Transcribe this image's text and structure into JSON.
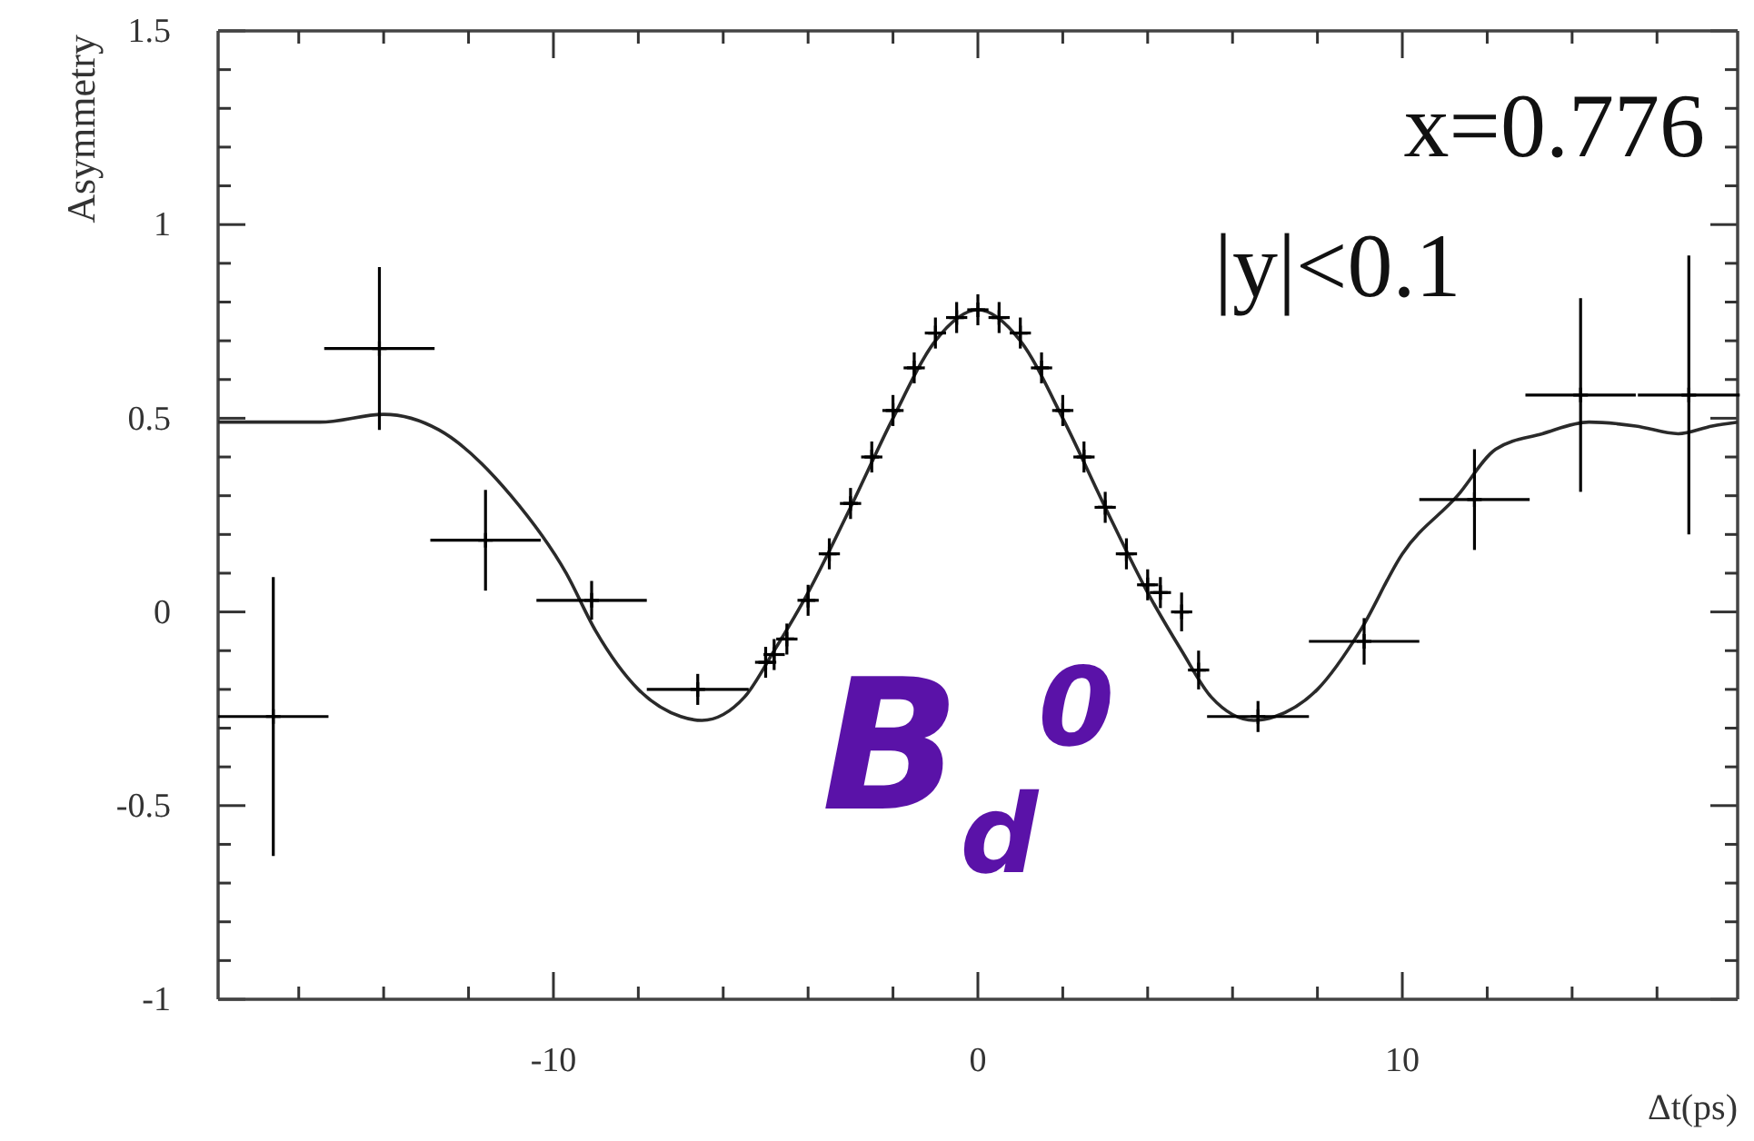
{
  "chart_data": {
    "type": "scatter",
    "xlabel": "Δt(ps)",
    "ylabel": "Asymmetry",
    "xlim": [
      -17.9,
      17.9
    ],
    "ylim": [
      -1,
      1.5
    ],
    "xticks": [
      {
        "value": -16,
        "label": null
      },
      {
        "value": -14,
        "label": null
      },
      {
        "value": -12,
        "label": null
      },
      -10,
      {
        "value": -8,
        "label": null
      },
      {
        "value": -6,
        "label": null
      },
      {
        "value": -4,
        "label": null
      },
      {
        "value": -2,
        "label": null
      },
      0,
      {
        "value": 2,
        "label": null
      },
      {
        "value": 4,
        "label": null
      },
      {
        "value": 6,
        "label": null
      },
      {
        "value": 8,
        "label": null
      },
      10,
      {
        "value": 12,
        "label": null
      },
      {
        "value": 14,
        "label": null
      },
      {
        "value": 16,
        "label": null
      }
    ],
    "yticks": [
      -1,
      {
        "value": -0.9,
        "label": null
      },
      {
        "value": -0.8,
        "label": null
      },
      {
        "value": -0.7,
        "label": null
      },
      {
        "value": -0.6,
        "label": null
      },
      -0.5,
      {
        "value": -0.4,
        "label": null
      },
      {
        "value": -0.3,
        "label": null
      },
      {
        "value": -0.2,
        "label": null
      },
      {
        "value": -0.1,
        "label": null
      },
      0,
      {
        "value": 0.1,
        "label": null
      },
      {
        "value": 0.2,
        "label": null
      },
      {
        "value": 0.3,
        "label": null
      },
      {
        "value": 0.4,
        "label": null
      },
      0.5,
      {
        "value": 0.6,
        "label": null
      },
      {
        "value": 0.7,
        "label": null
      },
      {
        "value": 0.8,
        "label": null
      },
      {
        "value": 0.9,
        "label": null
      },
      1,
      {
        "value": 1.1,
        "label": null
      },
      {
        "value": 1.2,
        "label": null
      },
      {
        "value": 1.3,
        "label": null
      },
      {
        "value": 1.4,
        "label": null
      },
      1.5
    ],
    "grid": false,
    "legend": false,
    "annotations": [
      "x=0.776",
      "|y|<0.1",
      "B$_{d}$$^{0}$"
    ],
    "series": [
      {
        "type": "scatter",
        "color": "#000000",
        "marker": "cross",
        "x": [
          -16.6,
          -14.1,
          -11.6,
          -9.1,
          -6.6,
          -5,
          -4.8,
          -4.5,
          -4,
          -3.5,
          -3,
          -2.5,
          -2,
          -1.5,
          -1,
          -0.5,
          0,
          0.5,
          1,
          1.5,
          2,
          2.5,
          3,
          3.5,
          4,
          4.3,
          4.8,
          5.2,
          6.6,
          9.1,
          11.7,
          14.2,
          16.75
        ],
        "values": [
          -0.27,
          0.68,
          0.185,
          0.03,
          -0.2,
          -0.13,
          -0.11,
          -0.07,
          0.03,
          0.15,
          0.28,
          0.4,
          0.52,
          0.63,
          0.72,
          0.76,
          0.78,
          0.76,
          0.72,
          0.63,
          0.52,
          0.4,
          0.27,
          0.15,
          0.07,
          0.05,
          0,
          -0.15,
          -0.27,
          -0.076,
          0.29,
          0.56,
          0.56
        ],
        "errors": [
          0.36,
          0.21,
          0.13,
          0.05,
          0.04,
          0.04,
          0.04,
          0.04,
          0.04,
          0.04,
          0.04,
          0.04,
          0.04,
          0.04,
          0.04,
          0.04,
          0.04,
          0.04,
          0.04,
          0.04,
          0.04,
          0.04,
          0.04,
          0.04,
          0.04,
          0.04,
          0.05,
          0.05,
          0.04,
          0.06,
          0.13,
          0.25,
          0.36
        ],
        "xerrors": [
          1.3,
          1.3,
          1.3,
          1.3,
          1.2,
          0.25,
          0.25,
          0.25,
          0.25,
          0.25,
          0.25,
          0.25,
          0.25,
          0.25,
          0.25,
          0.25,
          0.25,
          0.25,
          0.25,
          0.25,
          0.25,
          0.25,
          0.25,
          0.25,
          0.25,
          0.25,
          0.25,
          0.25,
          1.2,
          1.3,
          1.3,
          1.3,
          1.2
        ]
      },
      {
        "type": "line",
        "color": "#2a2a2a",
        "marker": "none",
        "x": [
          -17.9,
          -15.5,
          -14,
          -12.7,
          -11,
          -9.7,
          -9,
          -8,
          -7,
          -6.5,
          -5.5,
          -4.8,
          -4,
          -3,
          -2,
          -1,
          0,
          1,
          2,
          3,
          4,
          4.8,
          5.5,
          6.5,
          7,
          8,
          9,
          10,
          11.3,
          12.2,
          13.3,
          14.4,
          15.5,
          16.5,
          17.3,
          17.9
        ],
        "values": [
          0.49,
          0.49,
          0.51,
          0.47,
          0.3,
          0.1,
          -0.05,
          -0.2,
          -0.27,
          -0.28,
          -0.22,
          -0.1,
          0.05,
          0.27,
          0.5,
          0.7,
          0.78,
          0.7,
          0.5,
          0.27,
          0.05,
          -0.1,
          -0.22,
          -0.28,
          -0.27,
          -0.2,
          -0.05,
          0.15,
          0.3,
          0.42,
          0.46,
          0.49,
          0.48,
          0.46,
          0.48,
          0.49
        ]
      }
    ]
  }
}
